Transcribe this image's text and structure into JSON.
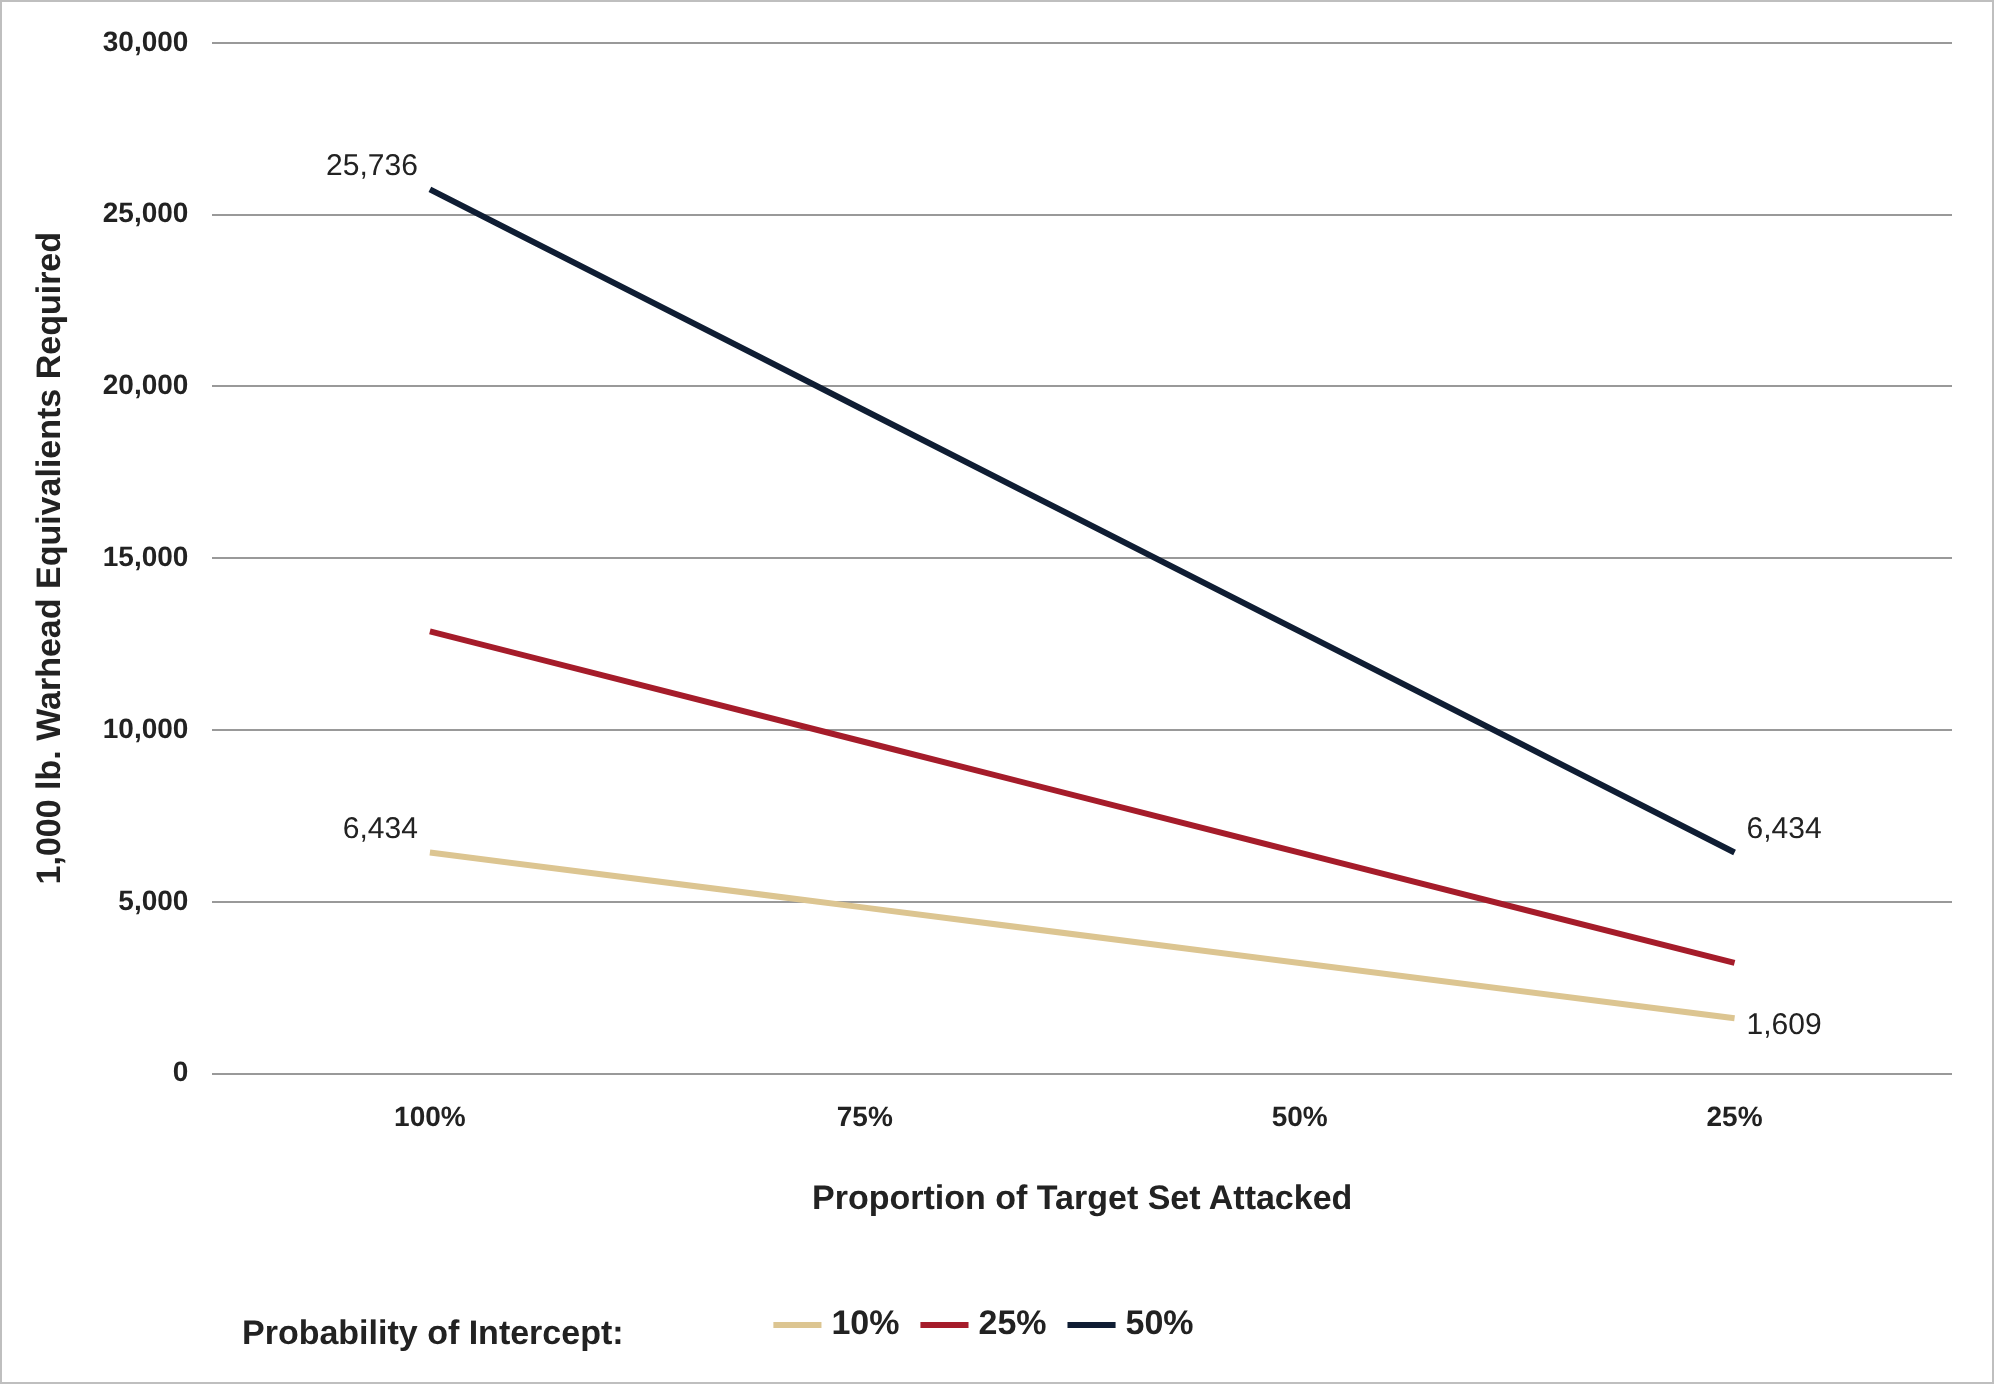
{
  "chart_data": {
    "type": "line",
    "xlabel": "Proportion of Target Set Attacked",
    "ylabel": "1,000 lb. Warhead Equivalients Required",
    "legend_title": "Probability of Intercept:",
    "categories": [
      "100%",
      "75%",
      "50%",
      "25%"
    ],
    "series": [
      {
        "name": "10%",
        "color": "#dcc591",
        "values": [
          6434,
          4830,
          3220,
          1609
        ],
        "value_labels": [
          "6,434",
          null,
          null,
          "1,609"
        ]
      },
      {
        "name": "25%",
        "color": "#a51c2a",
        "values": [
          12870,
          9650,
          6430,
          3220
        ]
      },
      {
        "name": "50%",
        "color": "#0f1d33",
        "values": [
          25736,
          19300,
          12870,
          6434
        ],
        "value_labels": [
          "25,736",
          null,
          null,
          "6,434"
        ]
      }
    ],
    "ylim": [
      0,
      30000
    ],
    "yticks": [
      {
        "value": 0,
        "label": "0"
      },
      {
        "value": 5000,
        "label": "5,000"
      },
      {
        "value": 10000,
        "label": "10,000"
      },
      {
        "value": 15000,
        "label": "15,000"
      },
      {
        "value": 20000,
        "label": "20,000"
      },
      {
        "value": 25000,
        "label": "25,000"
      },
      {
        "value": 30000,
        "label": "30,000"
      }
    ],
    "grid": "y",
    "legend": "bottom"
  }
}
